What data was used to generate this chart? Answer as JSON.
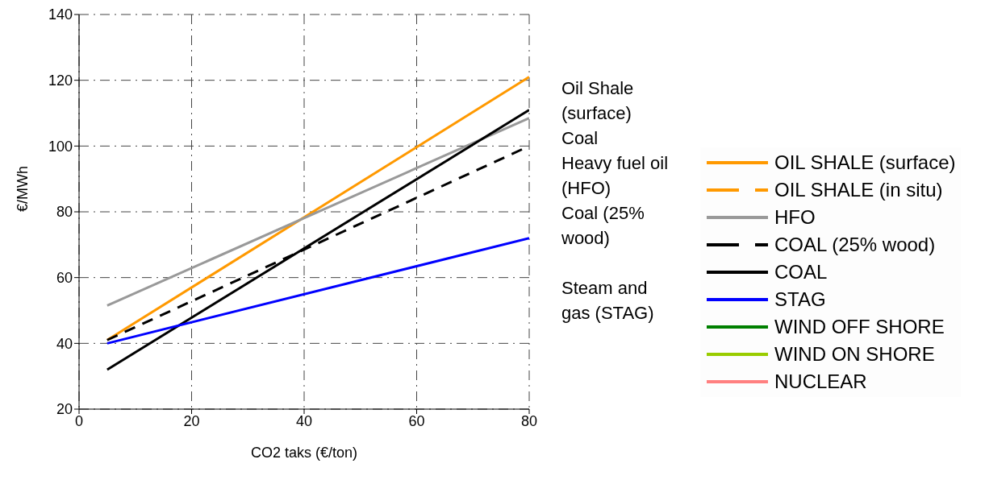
{
  "chart_data": {
    "type": "line",
    "xlabel": "CO2 taks (€/ton)",
    "ylabel": "€/MWh",
    "xlim": [
      0,
      80
    ],
    "xticks": [
      0,
      20,
      40,
      60,
      80
    ],
    "ylim": [
      20,
      140
    ],
    "yticks": [
      20,
      40,
      60,
      80,
      100,
      120,
      140
    ],
    "grid": true,
    "legend": "right",
    "marker": "none",
    "x": [
      5,
      80
    ],
    "series": [
      {
        "name": "OIL SHALE (surface)",
        "color": "#ff9900",
        "values": [
          41,
          121
        ],
        "line_style": "solid"
      },
      {
        "name": "OIL SHALE (in situ)",
        "color": "#ff9900",
        "values": [
          null,
          null
        ],
        "line_style": "dashed"
      },
      {
        "name": "HFO",
        "color": "#999999",
        "values": [
          51.5,
          108.5
        ],
        "line_style": "solid"
      },
      {
        "name": "COAL (25% wood)",
        "color": "#000000",
        "values": [
          41,
          100
        ],
        "line_style": "dashed"
      },
      {
        "name": "COAL",
        "color": "#000000",
        "values": [
          32,
          111
        ],
        "line_style": "solid"
      },
      {
        "name": "STAG",
        "color": "#0000ff",
        "values": [
          40,
          72
        ],
        "line_style": "solid"
      },
      {
        "name": "WIND OFF SHORE",
        "color": "#008000",
        "values": [
          null,
          null
        ],
        "line_style": "solid"
      },
      {
        "name": "WIND ON SHORE",
        "color": "#99cc00",
        "values": [
          null,
          null
        ],
        "line_style": "solid"
      },
      {
        "name": "NUCLEAR",
        "color": "#ff8080",
        "values": [
          null,
          null
        ],
        "line_style": "solid"
      }
    ],
    "annotations": [
      "Oil Shale (surface)",
      "Coal",
      "Heavy fuel oil (HFO)",
      "Coal (25% wood)",
      "Steam and gas (STAG)"
    ]
  }
}
